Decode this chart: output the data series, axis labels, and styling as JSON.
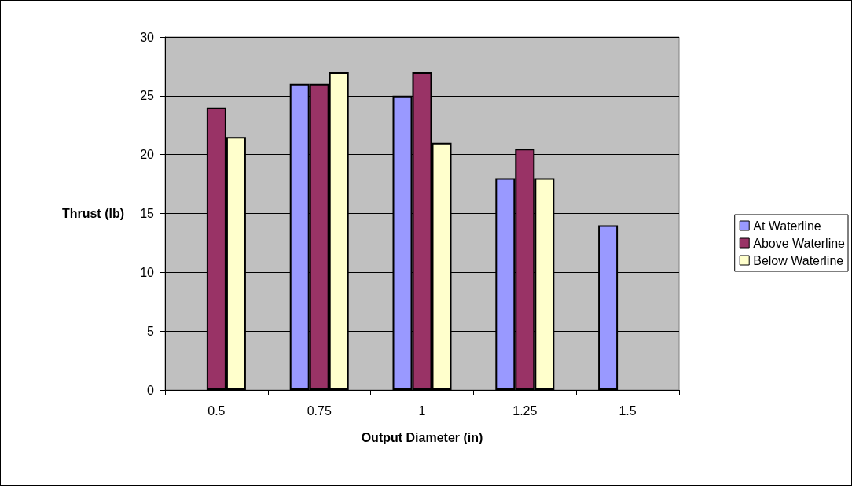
{
  "chart_data": {
    "type": "bar",
    "xlabel": "Output Diameter (in)",
    "ylabel": "Thrust (lb)",
    "categories": [
      "0.5",
      "0.75",
      "1",
      "1.25",
      "1.5"
    ],
    "series": [
      {
        "name": "At Waterline",
        "color": "#9999ff",
        "values": [
          null,
          26,
          25,
          18,
          14
        ]
      },
      {
        "name": "Above Waterline",
        "color": "#993366",
        "values": [
          24,
          26,
          27,
          20.5,
          null
        ]
      },
      {
        "name": "Below Waterline",
        "color": "#ffffcc",
        "values": [
          21.5,
          27,
          21,
          18,
          null
        ]
      }
    ],
    "ylim": [
      0,
      30
    ],
    "yticks": [
      0,
      5,
      10,
      15,
      20,
      25,
      30
    ],
    "grid": "y",
    "legend": "right"
  }
}
